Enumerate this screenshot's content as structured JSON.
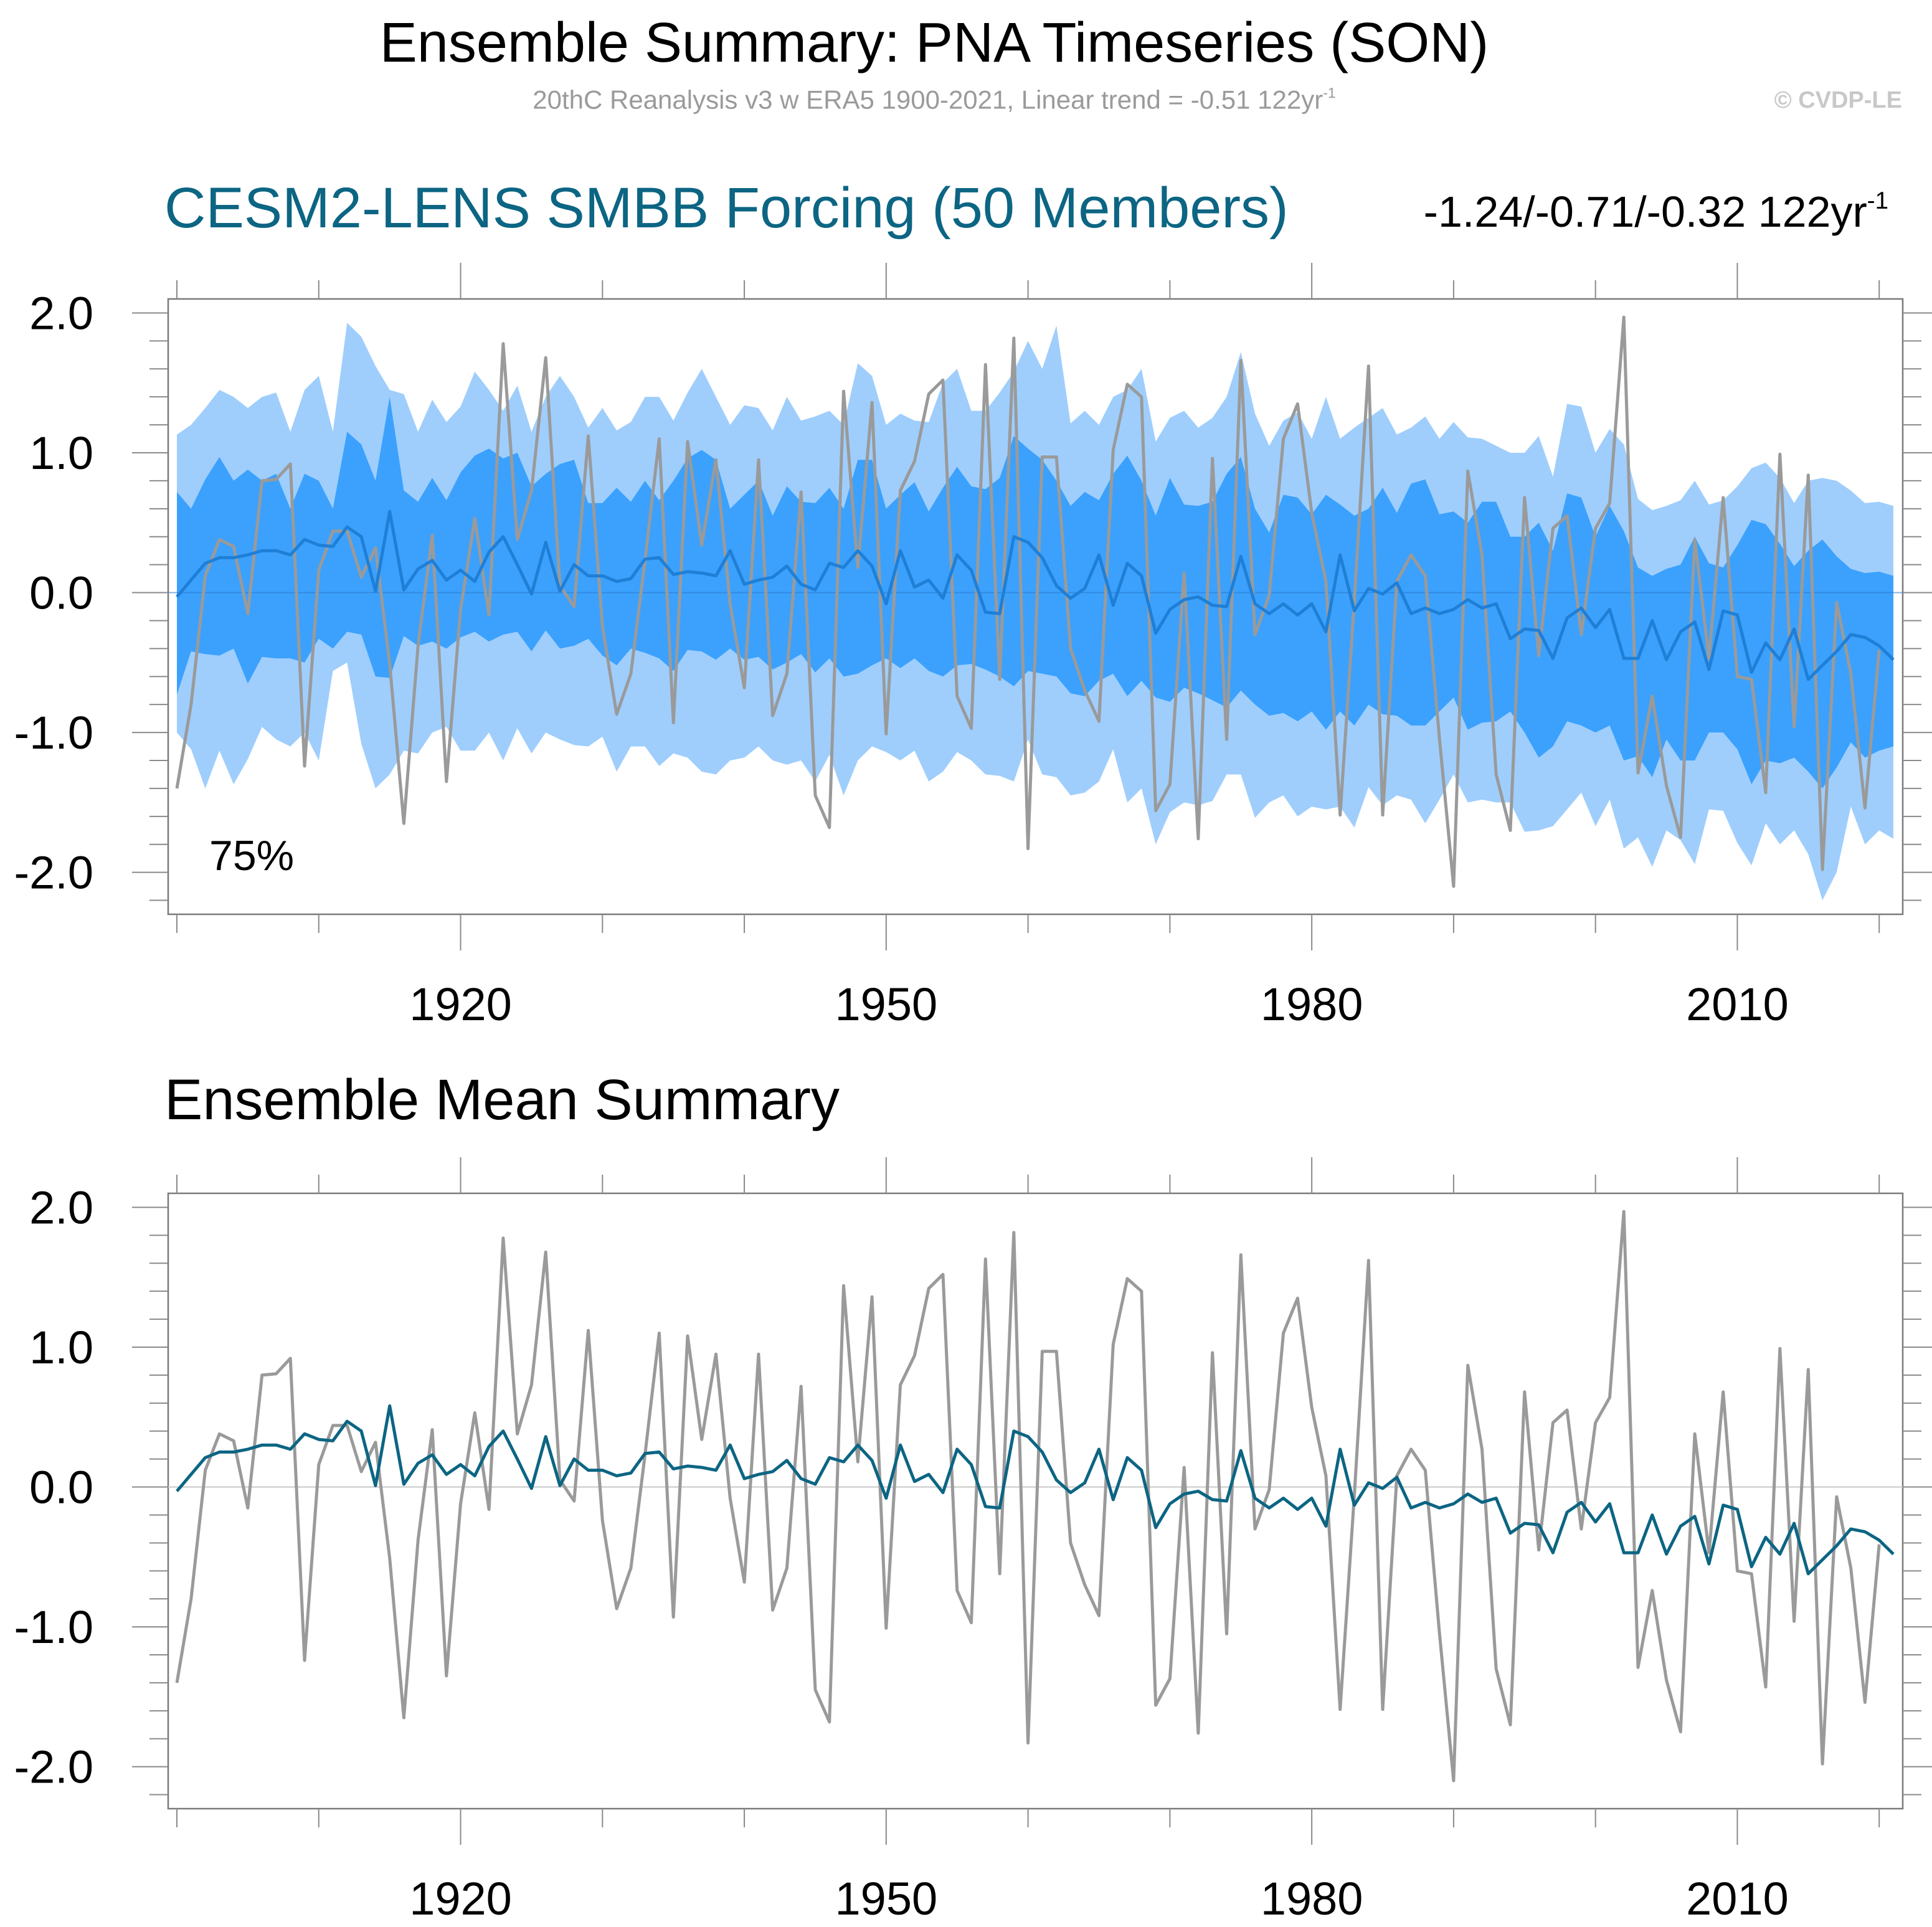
{
  "header": {
    "title": "Ensemble Summary: PNA Timeseries (SON)",
    "subtitle": "20thC Reanalysis v3 w ERA5 1900-2021, Linear trend = -0.51 122yr",
    "subtitle_sup": "-1",
    "copyright": "© CVDP-LE"
  },
  "panel1": {
    "title": "CESM2-LENS SMBB Forcing (50 Members)",
    "trend_text": "-1.24/-0.71/-0.32 122yr",
    "trend_sup": "-1",
    "percent_label": "75%"
  },
  "panel2": {
    "title": "Ensemble Mean Summary"
  },
  "colors": {
    "outer_band": "#9fcefd",
    "inner_band": "#3ba1fd",
    "ensemble_mean_top": "#1f7fd6",
    "ensemble_mean_bottom": "#0c6583",
    "observations": "#9a9a9a",
    "zero_line": "#c8c8c8"
  },
  "chart_data": [
    {
      "type": "area",
      "title": "CESM2-LENS SMBB Forcing (50 Members)",
      "x": {
        "start": 1900,
        "end": 2021
      },
      "xticks": [
        1920,
        1950,
        1980,
        2010
      ],
      "xticklabels": [
        "1920",
        "1950",
        "1980",
        "2010"
      ],
      "ylim": [
        -2.3,
        2.1
      ],
      "yticks": [
        -2.0,
        -1.0,
        0.0,
        1.0,
        2.0
      ],
      "yticklabels": [
        "-2.0",
        "-1.0",
        "0.0",
        "1.0",
        "2.0"
      ],
      "series": [
        {
          "name": "Observations (20thC Reanalysis v3 w ERA5)",
          "values": [
            -1.4,
            -0.8,
            0.12,
            0.38,
            0.33,
            -0.15,
            0.8,
            0.81,
            0.92,
            -1.24,
            0.16,
            0.44,
            0.44,
            0.11,
            0.32,
            -0.51,
            -1.65,
            -0.38,
            0.41,
            -1.35,
            -0.12,
            0.53,
            -0.16,
            1.78,
            0.38,
            0.73,
            1.68,
            0.05,
            -0.1,
            1.12,
            -0.24,
            -0.87,
            -0.58,
            0.23,
            1.1,
            -0.93,
            1.08,
            0.34,
            0.95,
            -0.08,
            -0.68,
            0.95,
            -0.88,
            -0.58,
            0.72,
            -1.45,
            -1.68,
            1.44,
            0.18,
            1.36,
            -1.01,
            0.73,
            0.94,
            1.42,
            1.52,
            -0.74,
            -0.97,
            1.63,
            -0.62,
            1.82,
            -1.83,
            0.97,
            0.97,
            -0.4,
            -0.7,
            -0.92,
            1.02,
            1.49,
            1.4,
            -1.56,
            -1.37,
            0.14,
            -1.76,
            0.96,
            -1.05,
            1.66,
            -0.3,
            -0.02,
            1.1,
            1.35,
            0.57,
            0.08,
            -1.59,
            -0.06,
            1.62,
            -1.59,
            0.08,
            0.27,
            0.12,
            -1.04,
            -2.1,
            0.87,
            0.27,
            -1.3,
            -1.7,
            0.68,
            -0.45,
            0.46,
            0.55,
            -0.3,
            0.46,
            0.64,
            1.97,
            -1.29,
            -0.74,
            -1.38,
            -1.75,
            0.38,
            -0.47,
            0.68,
            -0.6,
            -0.62,
            -1.43,
            0.99,
            -0.96,
            0.84,
            -1.98,
            -0.07,
            -0.58,
            -1.54,
            -0.41
          ]
        },
        {
          "name": "Ensemble mean",
          "values": [
            -0.03,
            0.09,
            0.21,
            0.25,
            0.25,
            0.27,
            0.3,
            0.3,
            0.27,
            0.38,
            0.34,
            0.33,
            0.47,
            0.4,
            0.01,
            0.58,
            0.02,
            0.17,
            0.23,
            0.09,
            0.16,
            0.08,
            0.29,
            0.4,
            0.2,
            -0.01,
            0.36,
            0.01,
            0.2,
            0.12,
            0.12,
            0.08,
            0.1,
            0.24,
            0.25,
            0.13,
            0.15,
            0.14,
            0.12,
            0.3,
            0.06,
            0.09,
            0.11,
            0.19,
            0.06,
            0.02,
            0.21,
            0.18,
            0.3,
            0.19,
            -0.08,
            0.3,
            0.04,
            0.09,
            -0.04,
            0.27,
            0.16,
            -0.14,
            -0.15,
            0.4,
            0.36,
            0.25,
            0.05,
            -0.04,
            0.03,
            0.27,
            -0.09,
            0.21,
            0.12,
            -0.29,
            -0.12,
            -0.05,
            -0.03,
            -0.09,
            -0.1,
            0.26,
            -0.08,
            -0.15,
            -0.08,
            -0.16,
            -0.08,
            -0.28,
            0.27,
            -0.13,
            0.03,
            -0.01,
            0.07,
            -0.15,
            -0.11,
            -0.15,
            -0.12,
            -0.05,
            -0.11,
            -0.08,
            -0.33,
            -0.26,
            -0.27,
            -0.47,
            -0.18,
            -0.11,
            -0.25,
            -0.12,
            -0.47,
            -0.47,
            -0.2,
            -0.48,
            -0.28,
            -0.21,
            -0.55,
            -0.13,
            -0.16,
            -0.57,
            -0.36,
            -0.48,
            -0.26,
            -0.62,
            -0.52,
            -0.42,
            -0.3,
            -0.32,
            -0.38,
            -0.48
          ]
        },
        {
          "name": "Outer band upper",
          "values": [
            1.13,
            1.2,
            1.32,
            1.45,
            1.4,
            1.32,
            1.4,
            1.43,
            1.15,
            1.45,
            1.55,
            1.15,
            1.93,
            1.83,
            1.62,
            1.45,
            1.42,
            1.15,
            1.38,
            1.22,
            1.33,
            1.58,
            1.45,
            1.3,
            1.48,
            1.15,
            1.4,
            1.55,
            1.4,
            1.18,
            1.32,
            1.16,
            1.22,
            1.4,
            1.4,
            1.23,
            1.43,
            1.6,
            1.4,
            1.2,
            1.34,
            1.32,
            1.16,
            1.4,
            1.23,
            1.26,
            1.3,
            1.2,
            1.64,
            1.55,
            1.2,
            1.28,
            1.23,
            1.22,
            1.5,
            1.6,
            1.3,
            1.3,
            1.43,
            1.58,
            1.8,
            1.6,
            1.91,
            1.21,
            1.3,
            1.2,
            1.4,
            1.45,
            1.6,
            1.08,
            1.25,
            1.3,
            1.18,
            1.25,
            1.4,
            1.72,
            1.28,
            1.05,
            1.23,
            1.29,
            1.1,
            1.4,
            1.1,
            1.18,
            1.25,
            1.32,
            1.13,
            1.18,
            1.26,
            1.1,
            1.22,
            1.11,
            1.1,
            1.05,
            1.0,
            1.0,
            1.12,
            0.83,
            1.35,
            1.33,
            1.0,
            1.17,
            1.06,
            0.67,
            0.59,
            0.62,
            0.66,
            0.8,
            0.63,
            0.66,
            0.76,
            0.89,
            0.93,
            0.82,
            0.64,
            0.8,
            0.82,
            0.8,
            0.73,
            0.64,
            0.65,
            0.62
          ]
        },
        {
          "name": "Outer band lower",
          "values": [
            -1.0,
            -1.12,
            -1.4,
            -1.13,
            -1.37,
            -1.19,
            -0.96,
            -1.05,
            -1.1,
            -1.0,
            -1.2,
            -0.56,
            -0.5,
            -1.08,
            -1.4,
            -1.3,
            -1.13,
            -1.15,
            -1.0,
            -0.96,
            -1.13,
            -1.13,
            -1.0,
            -1.2,
            -0.97,
            -1.15,
            -1.0,
            -1.05,
            -1.09,
            -1.1,
            -1.03,
            -1.28,
            -1.1,
            -1.1,
            -1.24,
            -1.15,
            -1.18,
            -1.28,
            -1.3,
            -1.2,
            -1.18,
            -1.1,
            -1.2,
            -1.23,
            -1.2,
            -1.35,
            -1.16,
            -1.45,
            -1.2,
            -1.1,
            -1.14,
            -1.2,
            -1.13,
            -1.35,
            -1.28,
            -1.14,
            -1.2,
            -1.3,
            -1.31,
            -1.35,
            -1.05,
            -1.3,
            -1.32,
            -1.45,
            -1.43,
            -1.35,
            -1.12,
            -1.5,
            -1.4,
            -1.8,
            -1.57,
            -1.5,
            -1.52,
            -1.49,
            -1.3,
            -1.3,
            -1.61,
            -1.5,
            -1.45,
            -1.6,
            -1.53,
            -1.55,
            -1.53,
            -1.68,
            -1.39,
            -1.52,
            -1.45,
            -1.48,
            -1.65,
            -1.48,
            -1.3,
            -1.5,
            -1.48,
            -1.5,
            -1.5,
            -1.71,
            -1.7,
            -1.67,
            -1.55,
            -1.43,
            -1.67,
            -1.48,
            -1.83,
            -1.75,
            -1.96,
            -1.7,
            -1.77,
            -1.94,
            -1.55,
            -1.56,
            -1.79,
            -1.95,
            -1.65,
            -1.8,
            -1.7,
            -1.87,
            -2.2,
            -2.0,
            -1.53,
            -1.8,
            -1.7,
            -1.76
          ]
        },
        {
          "name": "Inner band upper",
          "values": [
            0.72,
            0.6,
            0.81,
            0.97,
            0.8,
            0.88,
            0.8,
            0.85,
            0.6,
            0.85,
            0.8,
            0.6,
            1.15,
            1.06,
            0.8,
            1.4,
            0.73,
            0.65,
            0.82,
            0.66,
            0.86,
            0.98,
            1.03,
            0.96,
            1.0,
            0.76,
            0.85,
            0.92,
            0.95,
            0.64,
            0.64,
            0.75,
            0.65,
            0.8,
            0.66,
            0.8,
            0.96,
            1.02,
            0.95,
            0.6,
            0.7,
            0.8,
            0.55,
            0.76,
            0.65,
            0.64,
            0.75,
            0.6,
            0.95,
            0.95,
            0.6,
            0.7,
            0.79,
            0.58,
            0.75,
            0.9,
            0.76,
            0.74,
            0.82,
            1.12,
            1.03,
            0.95,
            0.8,
            0.62,
            0.72,
            0.66,
            0.85,
            0.98,
            0.8,
            0.55,
            0.82,
            0.63,
            0.62,
            0.65,
            0.85,
            0.97,
            0.6,
            0.43,
            0.7,
            0.68,
            0.56,
            0.7,
            0.63,
            0.55,
            0.6,
            0.75,
            0.57,
            0.78,
            0.81,
            0.56,
            0.58,
            0.5,
            0.65,
            0.65,
            0.4,
            0.4,
            0.5,
            0.3,
            0.71,
            0.68,
            0.4,
            0.62,
            0.44,
            0.18,
            0.12,
            0.17,
            0.2,
            0.4,
            0.21,
            0.18,
            0.34,
            0.52,
            0.49,
            0.35,
            0.19,
            0.3,
            0.38,
            0.26,
            0.17,
            0.14,
            0.15,
            0.12
          ]
        },
        {
          "name": "Inner band lower",
          "values": [
            -0.73,
            -0.42,
            -0.44,
            -0.45,
            -0.4,
            -0.65,
            -0.46,
            -0.47,
            -0.47,
            -0.5,
            -0.33,
            -0.4,
            -0.28,
            -0.3,
            -0.6,
            -0.61,
            -0.31,
            -0.38,
            -0.35,
            -0.4,
            -0.32,
            -0.28,
            -0.35,
            -0.3,
            -0.28,
            -0.42,
            -0.27,
            -0.4,
            -0.38,
            -0.33,
            -0.45,
            -0.52,
            -0.4,
            -0.43,
            -0.47,
            -0.56,
            -0.41,
            -0.42,
            -0.48,
            -0.4,
            -0.48,
            -0.46,
            -0.55,
            -0.5,
            -0.44,
            -0.57,
            -0.47,
            -0.6,
            -0.58,
            -0.52,
            -0.47,
            -0.54,
            -0.47,
            -0.56,
            -0.6,
            -0.52,
            -0.51,
            -0.55,
            -0.6,
            -0.67,
            -0.56,
            -0.58,
            -0.6,
            -0.72,
            -0.74,
            -0.63,
            -0.58,
            -0.74,
            -0.63,
            -0.75,
            -0.78,
            -0.68,
            -0.72,
            -0.77,
            -0.82,
            -0.7,
            -0.8,
            -0.88,
            -0.86,
            -0.92,
            -0.85,
            -0.98,
            -0.85,
            -0.95,
            -0.8,
            -0.87,
            -0.88,
            -0.95,
            -0.95,
            -0.85,
            -0.75,
            -0.98,
            -0.93,
            -0.92,
            -0.85,
            -1.0,
            -1.18,
            -1.1,
            -0.92,
            -0.95,
            -1.0,
            -0.95,
            -1.2,
            -1.17,
            -1.32,
            -1.05,
            -1.2,
            -1.2,
            -1.0,
            -1.0,
            -1.12,
            -1.37,
            -1.2,
            -1.22,
            -1.18,
            -1.28,
            -1.4,
            -1.25,
            -1.07,
            -1.18,
            -1.13,
            -1.1
          ]
        }
      ]
    },
    {
      "type": "line",
      "title": "Ensemble Mean Summary",
      "x": {
        "start": 1900,
        "end": 2021
      },
      "xticks": [
        1920,
        1950,
        1980,
        2010
      ],
      "xticklabels": [
        "1920",
        "1950",
        "1980",
        "2010"
      ],
      "ylim": [
        -2.3,
        2.1
      ],
      "yticks": [
        -2.0,
        -1.0,
        0.0,
        1.0,
        2.0
      ],
      "yticklabels": [
        "-2.0",
        "-1.0",
        "0.0",
        "1.0",
        "2.0"
      ],
      "series_ref": [
        "Observations (20thC Reanalysis v3 w ERA5)",
        "Ensemble mean"
      ]
    }
  ]
}
